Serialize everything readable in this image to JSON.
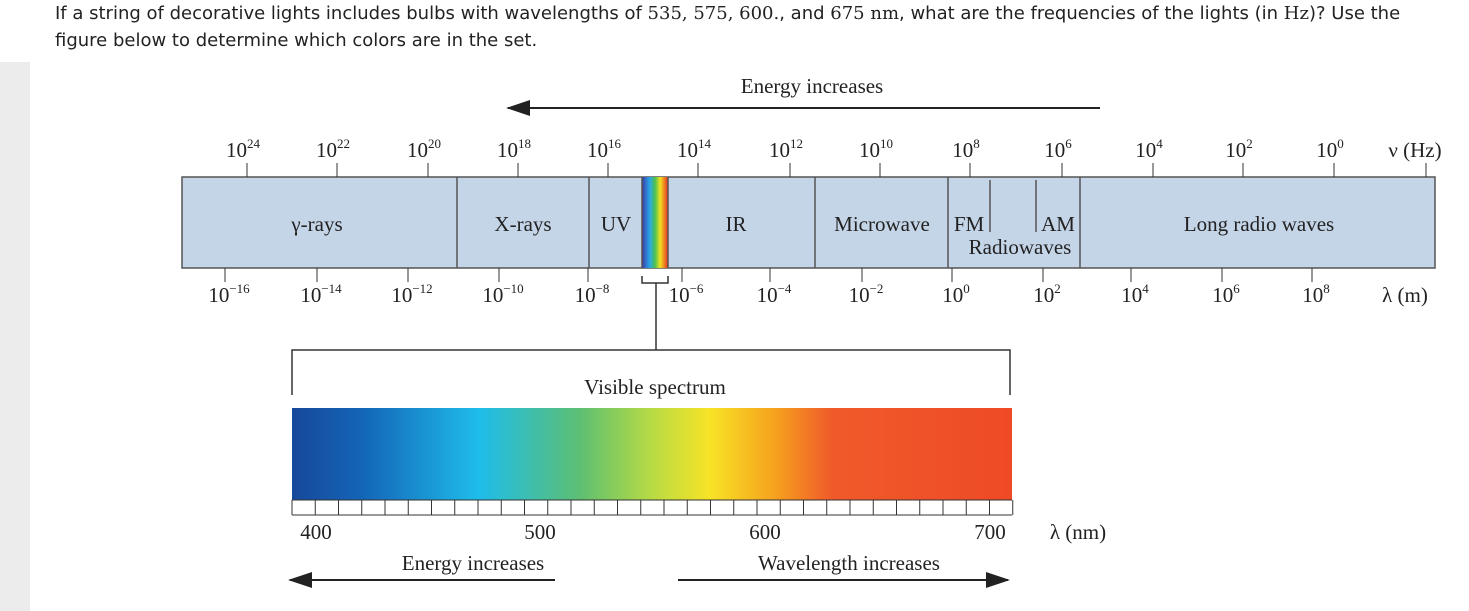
{
  "question": {
    "parts": [
      "If a string of decorative lights includes bulbs with wavelengths of ",
      "535, 575, 600.",
      ", and ",
      "675",
      " nm",
      ", what are the frequencies of the lights (in ",
      "Hz",
      ")? Use the figure below to determine which colors are in the set."
    ]
  },
  "figure": {
    "top_arrow_label": "Energy increases",
    "frequency_labels": [
      {
        "base": "10",
        "exp": "24"
      },
      {
        "base": "10",
        "exp": "22"
      },
      {
        "base": "10",
        "exp": "20"
      },
      {
        "base": "10",
        "exp": "18"
      },
      {
        "base": "10",
        "exp": "16"
      },
      {
        "base": "10",
        "exp": "14"
      },
      {
        "base": "10",
        "exp": "12"
      },
      {
        "base": "10",
        "exp": "10"
      },
      {
        "base": "10",
        "exp": "8"
      },
      {
        "base": "10",
        "exp": "6"
      },
      {
        "base": "10",
        "exp": "4"
      },
      {
        "base": "10",
        "exp": "2"
      },
      {
        "base": "10",
        "exp": "0"
      }
    ],
    "frequency_unit": "ν (Hz)",
    "regions": [
      "γ-rays",
      "X-rays",
      "UV",
      "IR",
      "Microwave",
      "FM",
      "AM",
      "Radiowaves",
      "Long radio waves"
    ],
    "wavelength_labels": [
      {
        "base": "10",
        "exp": "−16"
      },
      {
        "base": "10",
        "exp": "−14"
      },
      {
        "base": "10",
        "exp": "−12"
      },
      {
        "base": "10",
        "exp": "−10"
      },
      {
        "base": "10",
        "exp": "−8"
      },
      {
        "base": "10",
        "exp": "−6"
      },
      {
        "base": "10",
        "exp": "−4"
      },
      {
        "base": "10",
        "exp": "−2"
      },
      {
        "base": "10",
        "exp": "0"
      },
      {
        "base": "10",
        "exp": "2"
      },
      {
        "base": "10",
        "exp": "4"
      },
      {
        "base": "10",
        "exp": "6"
      },
      {
        "base": "10",
        "exp": "8"
      }
    ],
    "wavelength_unit": "λ (m)",
    "visible_label": "Visible spectrum",
    "nm_labels": [
      "400",
      "500",
      "600",
      "700"
    ],
    "nm_unit": "λ (nm)",
    "bottom_left_label": "Energy increases",
    "bottom_right_label": "Wavelength increases"
  }
}
